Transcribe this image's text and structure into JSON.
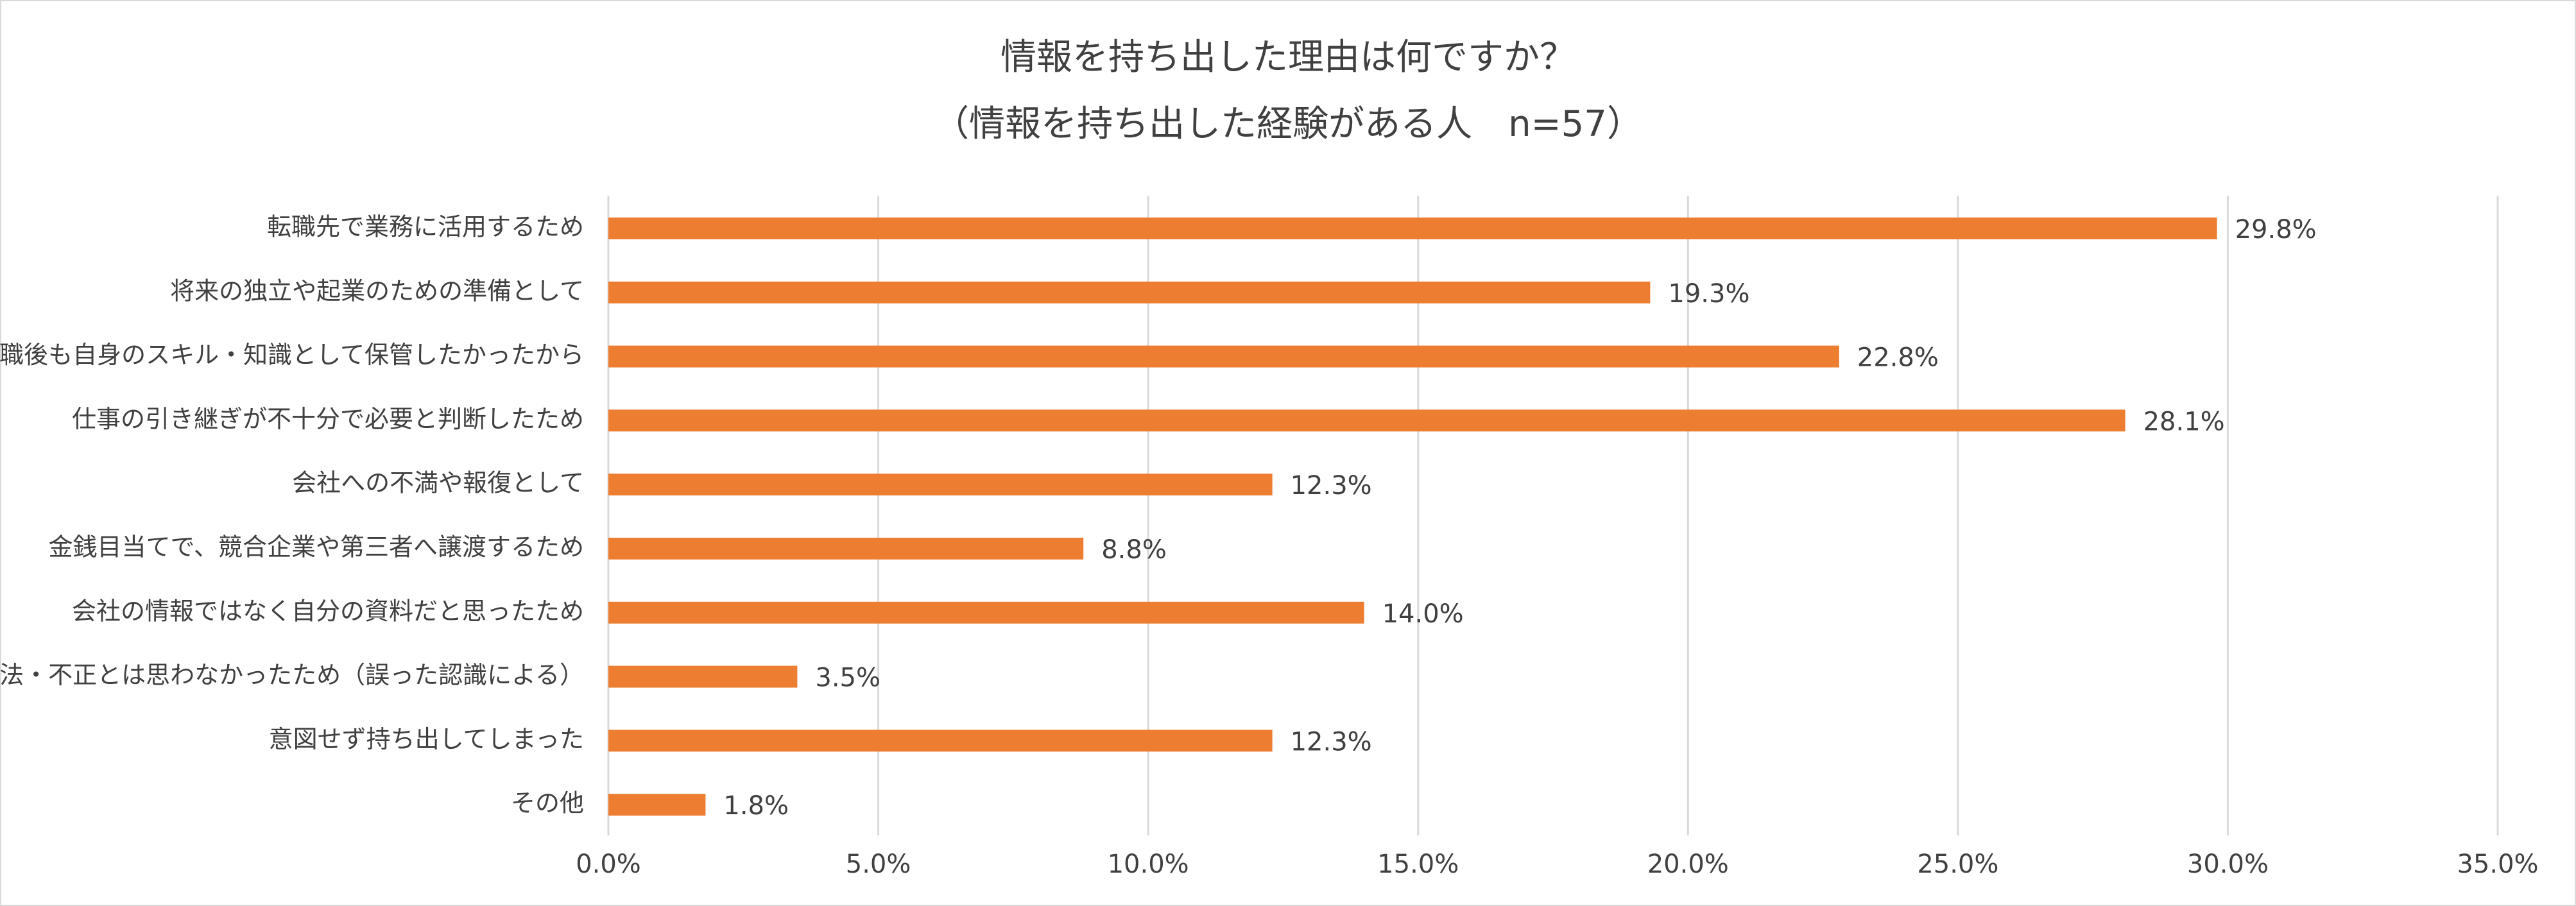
{
  "chart_data": {
    "type": "bar",
    "orientation": "horizontal",
    "title": "情報を持ち出した理由は何ですか？",
    "subtitle": "（情報を持ち出した経験がある人　n=57）",
    "categories": [
      "転職先で業務に活用するため",
      "将来の独立や起業のための準備として",
      "退職後も自身のスキル・知識として保管したかったから",
      "仕事の引き継ぎが不十分で必要と判断したため",
      "会社への不満や報復として",
      "金銭目当てで、競合企業や第三者へ譲渡するため",
      "会社の情報ではなく自分の資料だと思ったため",
      "違法・不正とは思わなかったため（誤った認識による）",
      "意図せず持ち出してしまった",
      "その他"
    ],
    "values": [
      29.8,
      19.3,
      22.8,
      28.1,
      12.3,
      8.8,
      14.0,
      3.5,
      12.3,
      1.8
    ],
    "value_labels": [
      "29.8%",
      "19.3%",
      "22.8%",
      "28.1%",
      "12.3%",
      "8.8%",
      "14.0%",
      "3.5%",
      "12.3%",
      "1.8%"
    ],
    "xlim": [
      0,
      35
    ],
    "x_ticks": [
      "0.0%",
      "5.0%",
      "10.0%",
      "15.0%",
      "20.0%",
      "25.0%",
      "30.0%",
      "35.0%"
    ],
    "grid": true,
    "legend": "none",
    "colors": {
      "bar": "#ED7D31",
      "grid": "#d9d9d9",
      "text": "#404040"
    }
  }
}
